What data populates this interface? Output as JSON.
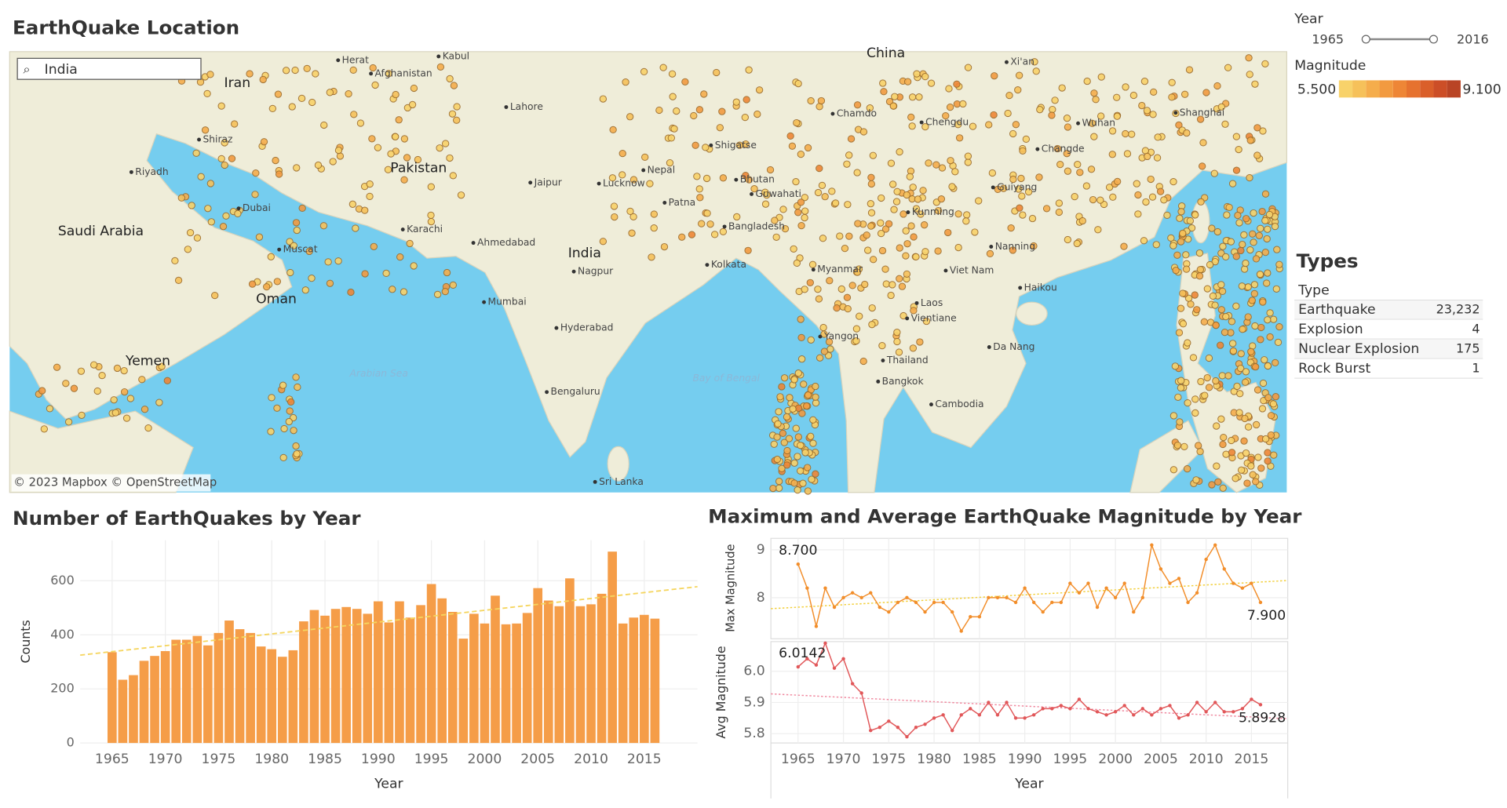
{
  "dashboard": {
    "map_title": "EarthQuake Location",
    "search": "India",
    "attribution": "© 2023 Mapbox © OpenStreetMap",
    "map_labels": [
      "Iran",
      "Pakistan",
      "India",
      "Saudi Arabia",
      "Yemen",
      "Oman",
      "China",
      "Afghanistan",
      "Nepal",
      "Bhutan",
      "Bangladesh",
      "Myanmar",
      "Thailand",
      "Laos",
      "Cambodia",
      "Viet Nam",
      "Sri Lanka",
      "Arabian Sea",
      "Bay of Bengal",
      "Kabul",
      "Lahore",
      "Karachi",
      "Dubai",
      "Muscat",
      "Jaipur",
      "Ahmedabad",
      "Mumbai",
      "Nagpur",
      "Hyderabad",
      "Bengaluru",
      "Kolkata",
      "Patna",
      "Lucknow",
      "Yangon",
      "Bangkok",
      "Vientiane",
      "Da Nang",
      "Kunming",
      "Chengdu",
      "Guiyang",
      "Nanning",
      "Wuhan",
      "Shanghai",
      "Xi'an",
      "Changde",
      "Shigatse",
      "Chamdo",
      "Haikou",
      "Guwahati",
      "Herat",
      "Shiraz",
      "Riyadh"
    ],
    "year_filter": {
      "label": "Year",
      "from": "1965",
      "to": "2016"
    },
    "magnitude_legend": {
      "label": "Magnitude",
      "min": "5.500",
      "max": "9.100",
      "colors": [
        "#f8d26a",
        "#f6c15a",
        "#f5ad4c",
        "#f29a40",
        "#ee8636",
        "#e6722f",
        "#da5f2a",
        "#cc4e27",
        "#b94425"
      ]
    },
    "types": {
      "title": "Types",
      "header": "Type",
      "rows": [
        [
          "Earthquake",
          "23,232"
        ],
        [
          "Explosion",
          "4"
        ],
        [
          "Nuclear Explosion",
          "175"
        ],
        [
          "Rock Burst",
          "1"
        ]
      ]
    }
  },
  "chart_data": [
    {
      "type": "bar",
      "title": "Number of EarthQuakes by Year",
      "xlabel": "Year",
      "ylabel": "Counts",
      "color": "#f59d48",
      "trend_color": "#f5d55e",
      "x": [
        1965,
        1966,
        1967,
        1968,
        1969,
        1970,
        1971,
        1972,
        1973,
        1974,
        1975,
        1976,
        1977,
        1978,
        1979,
        1980,
        1981,
        1982,
        1983,
        1984,
        1985,
        1986,
        1987,
        1988,
        1989,
        1990,
        1991,
        1992,
        1993,
        1994,
        1995,
        1996,
        1997,
        1998,
        1999,
        2000,
        2001,
        2002,
        2003,
        2004,
        2005,
        2006,
        2007,
        2008,
        2009,
        2010,
        2011,
        2012,
        2013,
        2014,
        2015,
        2016
      ],
      "values": [
        336,
        234,
        251,
        304,
        322,
        340,
        382,
        382,
        396,
        361,
        407,
        453,
        421,
        407,
        357,
        347,
        319,
        343,
        450,
        492,
        471,
        496,
        503,
        496,
        478,
        524,
        446,
        524,
        464,
        510,
        588,
        535,
        485,
        386,
        478,
        442,
        545,
        439,
        442,
        481,
        573,
        527,
        506,
        609,
        506,
        513,
        552,
        708,
        442,
        464,
        474,
        460
      ],
      "xlim": [
        1962,
        2020
      ],
      "xticks": [
        1965,
        1970,
        1975,
        1980,
        1985,
        1990,
        1995,
        2000,
        2005,
        2010,
        2015
      ],
      "ylim": [
        0,
        750
      ],
      "yticks": [
        0,
        200,
        400,
        600
      ],
      "grid": true
    },
    {
      "type": "line",
      "title": "Maximum and Average EarthQuake Magnitude by Year",
      "ylabel": "Max Magnitude",
      "color": "#f28e2b",
      "trend_color": "#f2cf3a",
      "x": [
        1965,
        1966,
        1967,
        1968,
        1969,
        1970,
        1971,
        1972,
        1973,
        1974,
        1975,
        1976,
        1977,
        1978,
        1979,
        1980,
        1981,
        1982,
        1983,
        1984,
        1985,
        1986,
        1987,
        1988,
        1989,
        1990,
        1991,
        1992,
        1993,
        1994,
        1995,
        1996,
        1997,
        1998,
        1999,
        2000,
        2001,
        2002,
        2003,
        2004,
        2005,
        2006,
        2007,
        2008,
        2009,
        2010,
        2011,
        2012,
        2013,
        2014,
        2015,
        2016
      ],
      "values": [
        8.7,
        8.2,
        7.4,
        8.2,
        7.8,
        8.0,
        8.1,
        8.0,
        8.1,
        7.8,
        7.7,
        7.9,
        8.0,
        7.9,
        7.7,
        7.9,
        7.9,
        7.7,
        7.3,
        7.6,
        7.6,
        8.0,
        8.0,
        8.0,
        7.9,
        8.2,
        7.9,
        7.7,
        7.9,
        7.9,
        8.3,
        8.1,
        8.3,
        7.8,
        8.2,
        8.0,
        8.3,
        7.7,
        8.0,
        9.1,
        8.6,
        8.3,
        8.4,
        7.9,
        8.1,
        8.8,
        9.1,
        8.6,
        8.3,
        8.2,
        8.3,
        7.9
      ],
      "value_labels": [
        "8.700",
        null,
        null,
        null,
        null,
        null,
        null,
        null,
        null,
        null,
        null,
        null,
        null,
        null,
        null,
        null,
        null,
        null,
        null,
        null,
        null,
        null,
        null,
        null,
        null,
        null,
        null,
        null,
        null,
        null,
        null,
        null,
        null,
        null,
        null,
        null,
        null,
        null,
        null,
        null,
        null,
        null,
        null,
        null,
        null,
        null,
        null,
        null,
        null,
        null,
        null,
        "7.900"
      ],
      "xlim": [
        1962,
        2019
      ],
      "ylim": [
        7.14,
        9.24
      ],
      "yticks": [
        8,
        9
      ],
      "grid": true
    },
    {
      "type": "line",
      "ylabel": "Avg Magnitude",
      "xlabel": "Year",
      "color": "#e15759",
      "trend_color": "#f08aa0",
      "x": [
        1965,
        1966,
        1967,
        1968,
        1969,
        1970,
        1971,
        1972,
        1973,
        1974,
        1975,
        1976,
        1977,
        1978,
        1979,
        1980,
        1981,
        1982,
        1983,
        1984,
        1985,
        1986,
        1987,
        1988,
        1989,
        1990,
        1991,
        1992,
        1993,
        1994,
        1995,
        1996,
        1997,
        1998,
        1999,
        2000,
        2001,
        2002,
        2003,
        2004,
        2005,
        2006,
        2007,
        2008,
        2009,
        2010,
        2011,
        2012,
        2013,
        2014,
        2015,
        2016
      ],
      "values": [
        6.0142,
        6.04,
        6.02,
        6.09,
        6.01,
        6.04,
        5.96,
        5.93,
        5.81,
        5.82,
        5.84,
        5.82,
        5.79,
        5.82,
        5.83,
        5.85,
        5.86,
        5.81,
        5.86,
        5.88,
        5.86,
        5.9,
        5.86,
        5.9,
        5.85,
        5.85,
        5.86,
        5.88,
        5.88,
        5.89,
        5.88,
        5.91,
        5.88,
        5.87,
        5.86,
        5.87,
        5.89,
        5.86,
        5.88,
        5.86,
        5.88,
        5.89,
        5.85,
        5.86,
        5.9,
        5.87,
        5.9,
        5.87,
        5.87,
        5.88,
        5.91,
        5.8928
      ],
      "value_labels": [
        "6.0142",
        null,
        null,
        null,
        null,
        null,
        null,
        null,
        null,
        null,
        null,
        null,
        null,
        null,
        null,
        null,
        null,
        null,
        null,
        null,
        null,
        null,
        null,
        null,
        null,
        null,
        null,
        null,
        null,
        null,
        null,
        null,
        null,
        null,
        null,
        null,
        null,
        null,
        null,
        null,
        null,
        null,
        null,
        null,
        null,
        null,
        null,
        null,
        null,
        null,
        null,
        "5.8928"
      ],
      "xlim": [
        1962,
        2019
      ],
      "xticks": [
        1965,
        1970,
        1975,
        1980,
        1985,
        1990,
        1995,
        2000,
        2005,
        2010,
        2015
      ],
      "ylim": [
        5.77,
        6.095
      ],
      "yticks": [
        5.8,
        5.9,
        {
          "value": 6,
          "label": "6.0"
        }
      ],
      "grid": true
    }
  ]
}
